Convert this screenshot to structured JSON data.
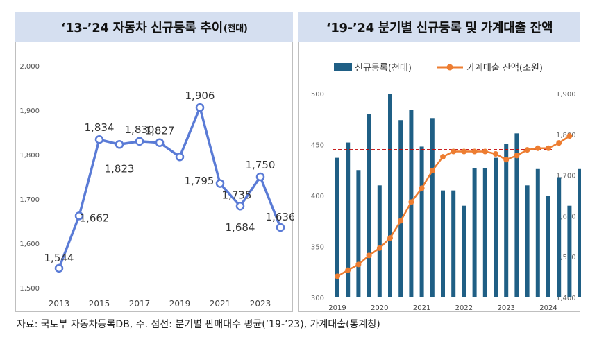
{
  "left_panel": {
    "title": "‘13-’24 자동차 신규등록 추이",
    "title_unit": "(천대)"
  },
  "right_panel": {
    "title": "‘19-’24 분기별 신규등록 및 가계대출 잔액"
  },
  "footnote": "자료: 국토부 자동차등록DB,    주. 점선: 분기별 판매대수 평균(‘19-’23), 가계대출(통계청)",
  "chart_data": [
    {
      "type": "line",
      "title": "‘13-’24 자동차 신규등록 추이(천대)",
      "x": [
        2013,
        2014,
        2015,
        2016,
        2017,
        2018,
        2019,
        2020,
        2021,
        2022,
        2023,
        2024
      ],
      "values": [
        1544,
        1662,
        1834,
        1823,
        1830,
        1827,
        1795,
        1906,
        1735,
        1684,
        1750,
        1636
      ],
      "data_labels": [
        "1,544",
        "1,662",
        "1,834",
        "1,823",
        "1,830",
        "1,827",
        "1,795",
        "1,906",
        "1,735",
        "1,684",
        "1,750",
        "1,636"
      ],
      "x_tick_labels": [
        "2013",
        "2015",
        "2017",
        "2019",
        "2021",
        "2023"
      ],
      "y_tick_labels": [
        "1,500",
        "1,600",
        "1,700",
        "1,800",
        "1,900",
        "2,000"
      ],
      "ylim": [
        1500,
        2000
      ],
      "grid": false,
      "color": "#5a7bd6"
    },
    {
      "type": "bar+line",
      "title": "‘19-’24 분기별 신규등록 및 가계대출 잔액",
      "legend_placement": "top",
      "x_tick_labels": [
        "2019",
        "2020",
        "2021",
        "2022",
        "2023",
        "2024"
      ],
      "series": [
        {
          "name": "신규등록(천대)",
          "type": "bar",
          "axis": "left",
          "color": "#1f5f85",
          "values": [
            437,
            452,
            425,
            480,
            410,
            500,
            474,
            484,
            448,
            476,
            405,
            405,
            390,
            427,
            427,
            437,
            451,
            461,
            410,
            426,
            400,
            418,
            390,
            426
          ]
        },
        {
          "name": "가계대출 잔액(조원)",
          "type": "line",
          "axis": "right",
          "color": "#ed7d31",
          "values": [
            1452,
            1467,
            1481,
            1503,
            1521,
            1546,
            1588,
            1634,
            1668,
            1711,
            1745,
            1758,
            1758,
            1758,
            1758,
            1752,
            1738,
            1748,
            1762,
            1766,
            1766,
            1779,
            1796
          ]
        }
      ],
      "reference_line": {
        "value": 445,
        "axis": "left",
        "color": "#c00000",
        "style": "dashed"
      },
      "y_left_tick_labels": [
        "300",
        "350",
        "400",
        "450",
        "500"
      ],
      "y_right_tick_labels": [
        "1,400",
        "1,500",
        "1,600",
        "1,700",
        "1,800",
        "1,900"
      ],
      "ylim_left": [
        300,
        500
      ],
      "ylim_right": [
        1400,
        1900
      ],
      "grid": false
    }
  ]
}
